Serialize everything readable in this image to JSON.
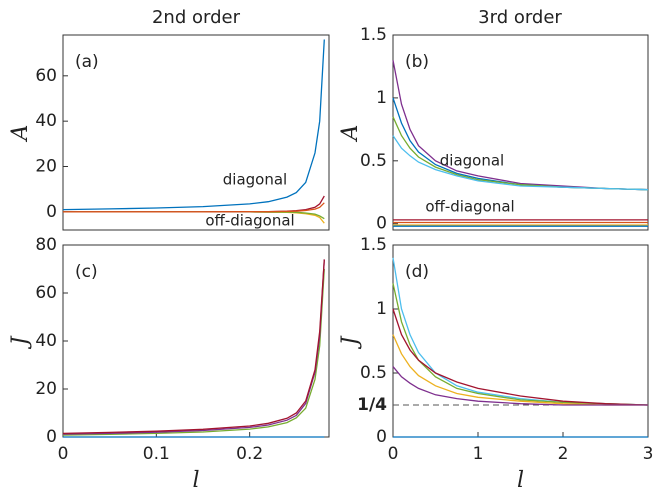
{
  "columns": [
    "2nd order",
    "3rd order"
  ],
  "chart_data": [
    {
      "type": "line",
      "panel_label": "(a)",
      "y_label": "A",
      "annotations": [
        "diagonal",
        "off-diagonal"
      ],
      "xlim": [
        0,
        0.285
      ],
      "ylim": [
        -8,
        78
      ],
      "yticks": [
        0,
        20,
        40,
        60
      ],
      "x": [
        0,
        0.05,
        0.1,
        0.15,
        0.2,
        0.22,
        0.24,
        0.25,
        0.26,
        0.27,
        0.275,
        0.28
      ],
      "series": [
        {
          "color": "#EDB120",
          "values": [
            0,
            0,
            0,
            0,
            0,
            -0.1,
            -0.2,
            -0.4,
            -0.8,
            -1.5,
            -2.5,
            -5
          ]
        },
        {
          "color": "#77AC30",
          "values": [
            0,
            0,
            0,
            0,
            0,
            -0.1,
            -0.1,
            -0.2,
            -0.5,
            -1,
            -1.8,
            -3
          ]
        },
        {
          "color": "#A2142F",
          "values": [
            0,
            0,
            0,
            0,
            0.1,
            0.1,
            0.3,
            0.5,
            1,
            2,
            3.5,
            7
          ]
        },
        {
          "color": "#D95319",
          "values": [
            0,
            0,
            0,
            0,
            0.1,
            0.1,
            0.2,
            0.3,
            0.6,
            1.2,
            2,
            4
          ]
        },
        {
          "color": "#0072BD",
          "values": [
            1,
            1.3,
            1.7,
            2.3,
            3.5,
            4.5,
            6.5,
            8.5,
            13,
            26,
            40,
            76
          ]
        }
      ]
    },
    {
      "type": "line",
      "panel_label": "(b)",
      "y_label": "A",
      "annotations": [
        "diagonal",
        "off-diagonal"
      ],
      "xlim": [
        0,
        3
      ],
      "ylim": [
        -0.05,
        1.5
      ],
      "yticks": [
        0,
        0.5,
        1,
        1.5
      ],
      "x": [
        0,
        0.1,
        0.2,
        0.3,
        0.5,
        0.75,
        1,
        1.5,
        2,
        2.5,
        3
      ],
      "series": [
        {
          "color": "#7E2F8E",
          "values": [
            1.3,
            0.95,
            0.75,
            0.62,
            0.5,
            0.42,
            0.38,
            0.32,
            0.3,
            0.28,
            0.27
          ]
        },
        {
          "color": "#0072BD",
          "values": [
            1.0,
            0.8,
            0.66,
            0.57,
            0.47,
            0.4,
            0.36,
            0.31,
            0.29,
            0.28,
            0.27
          ]
        },
        {
          "color": "#77AC30",
          "values": [
            0.85,
            0.7,
            0.6,
            0.53,
            0.45,
            0.39,
            0.35,
            0.31,
            0.29,
            0.28,
            0.27
          ]
        },
        {
          "color": "#4DBEEE",
          "values": [
            0.7,
            0.6,
            0.54,
            0.49,
            0.43,
            0.38,
            0.34,
            0.3,
            0.29,
            0.28,
            0.27
          ]
        },
        {
          "color": "#A2142F",
          "values": [
            0.03,
            0.03,
            0.03,
            0.03,
            0.03,
            0.03,
            0.03,
            0.03,
            0.03,
            0.03,
            0.03
          ]
        },
        {
          "color": "#D95319",
          "values": [
            0.01,
            0.01,
            0.01,
            0.01,
            0.01,
            0.01,
            0.01,
            0.01,
            0.01,
            0.01,
            0.01
          ]
        },
        {
          "color": "#EDB120",
          "values": [
            -0.01,
            -0.01,
            -0.01,
            -0.01,
            -0.01,
            -0.01,
            -0.01,
            -0.01,
            -0.01,
            -0.01,
            -0.01
          ]
        },
        {
          "color": "#0072BD",
          "values": [
            -0.02,
            -0.02,
            -0.02,
            -0.02,
            -0.02,
            -0.02,
            -0.02,
            -0.02,
            -0.02,
            -0.02,
            -0.02
          ]
        }
      ]
    },
    {
      "type": "line",
      "panel_label": "(c)",
      "y_label": "J",
      "x_label": "l",
      "xlim": [
        0,
        0.285
      ],
      "ylim": [
        0,
        80
      ],
      "xticks": [
        0,
        0.1,
        0.2
      ],
      "yticks": [
        0,
        20,
        40,
        60,
        80
      ],
      "x": [
        0,
        0.05,
        0.1,
        0.15,
        0.2,
        0.22,
        0.24,
        0.25,
        0.26,
        0.27,
        0.275,
        0.28
      ],
      "series": [
        {
          "color": "#0072BD",
          "values": [
            0,
            0,
            0,
            0,
            0,
            0,
            0,
            0,
            0,
            0,
            0,
            0
          ]
        },
        {
          "color": "#77AC30",
          "values": [
            0.8,
            1.1,
            1.5,
            2.1,
            3.3,
            4.2,
            6,
            8,
            12,
            24,
            38,
            70
          ]
        },
        {
          "color": "#7E2F8E",
          "values": [
            1.2,
            1.5,
            2,
            2.7,
            4,
            5,
            7,
            9,
            14,
            27,
            42,
            74
          ]
        },
        {
          "color": "#A2142F",
          "values": [
            1.5,
            1.9,
            2.4,
            3.2,
            4.6,
            5.7,
            7.8,
            10,
            15,
            28,
            44,
            74
          ]
        }
      ]
    },
    {
      "type": "line",
      "panel_label": "(d)",
      "y_label": "J",
      "x_label": "l",
      "xlim": [
        0,
        3
      ],
      "ylim": [
        0,
        1.5
      ],
      "xticks": [
        0,
        1,
        2,
        3
      ],
      "yticks": [
        0,
        0.5,
        1,
        1.5
      ],
      "reference_line": {
        "value": 0.25,
        "label": "1/4"
      },
      "x": [
        0,
        0.1,
        0.2,
        0.3,
        0.5,
        0.75,
        1,
        1.5,
        2,
        2.5,
        3
      ],
      "series": [
        {
          "color": "#0072BD",
          "values": [
            0,
            0,
            0,
            0,
            0,
            0,
            0,
            0,
            0,
            0,
            0
          ]
        },
        {
          "color": "#4DBEEE",
          "values": [
            1.4,
            1.0,
            0.8,
            0.66,
            0.5,
            0.4,
            0.35,
            0.3,
            0.27,
            0.26,
            0.25
          ]
        },
        {
          "color": "#77AC30",
          "values": [
            1.2,
            0.9,
            0.72,
            0.6,
            0.47,
            0.38,
            0.34,
            0.29,
            0.27,
            0.26,
            0.25
          ]
        },
        {
          "color": "#A2142F",
          "values": [
            1.0,
            0.8,
            0.68,
            0.6,
            0.5,
            0.43,
            0.38,
            0.32,
            0.28,
            0.26,
            0.25
          ]
        },
        {
          "color": "#EDB120",
          "values": [
            0.8,
            0.65,
            0.55,
            0.48,
            0.4,
            0.34,
            0.31,
            0.28,
            0.26,
            0.25,
            0.25
          ]
        },
        {
          "color": "#7E2F8E",
          "values": [
            0.55,
            0.47,
            0.42,
            0.38,
            0.33,
            0.3,
            0.28,
            0.26,
            0.25,
            0.25,
            0.25
          ]
        }
      ]
    }
  ]
}
